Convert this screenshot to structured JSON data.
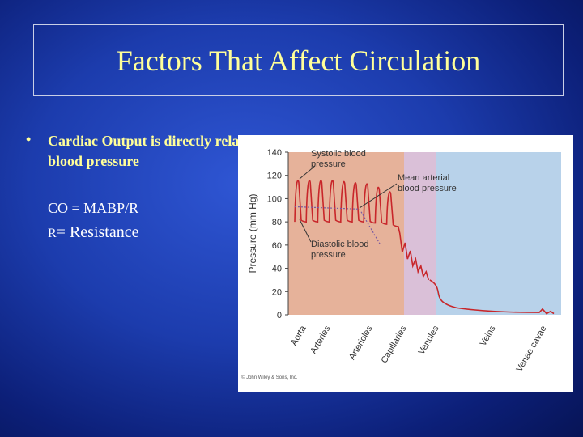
{
  "slide": {
    "title": "Factors That Affect Circulation",
    "bullet_marker": "•",
    "bullet_text": "Cardiac Output is directly related to blood pressure",
    "formula": "CO = MABP/R",
    "resistance_prefix": "R",
    "resistance_rest": "= Resistance"
  },
  "chart_data": {
    "type": "line",
    "ylabel": "Pressure (mm Hg)",
    "ylim": [
      0,
      140
    ],
    "yticks": [
      0,
      20,
      40,
      60,
      80,
      100,
      120,
      140
    ],
    "regions": [
      "Aorta",
      "Arteries",
      "Arterioles",
      "Capillaries",
      "Venules",
      "Veins",
      "Venae cavae"
    ],
    "region_bands": [
      {
        "from": "Aorta",
        "to": "Arterioles",
        "color": "#e6b29a"
      },
      {
        "from": "Capillaries",
        "to": "Capillaries",
        "color": "#dac0d8"
      },
      {
        "from": "Venules",
        "to": "Venae cavae",
        "color": "#b8d2ea"
      }
    ],
    "systolic_peaks": [
      118,
      118,
      118,
      118,
      117,
      116,
      115,
      112,
      108
    ],
    "diastolic_troughs": [
      80,
      80,
      80,
      80,
      80,
      80,
      79,
      78,
      76
    ],
    "mean_arterial": [
      {
        "x": "Aorta",
        "y": 93
      },
      {
        "x": "Arteries",
        "y": 91
      },
      {
        "x": "Arterioles",
        "y": 60
      },
      {
        "x": "Capillaries",
        "y": 30
      },
      {
        "x": "Venules",
        "y": 18
      },
      {
        "x": "Veins",
        "y": 4
      },
      {
        "x": "Venae cavae",
        "y": 2
      }
    ],
    "annotations": [
      {
        "text": [
          "Systolic blood",
          "pressure"
        ]
      },
      {
        "text": [
          "Mean arterial",
          "blood pressure"
        ]
      },
      {
        "text": [
          "Diastolic blood",
          "pressure"
        ]
      }
    ],
    "line_color": "#c8262a",
    "copyright": "© John Wiley & Sons, Inc."
  }
}
